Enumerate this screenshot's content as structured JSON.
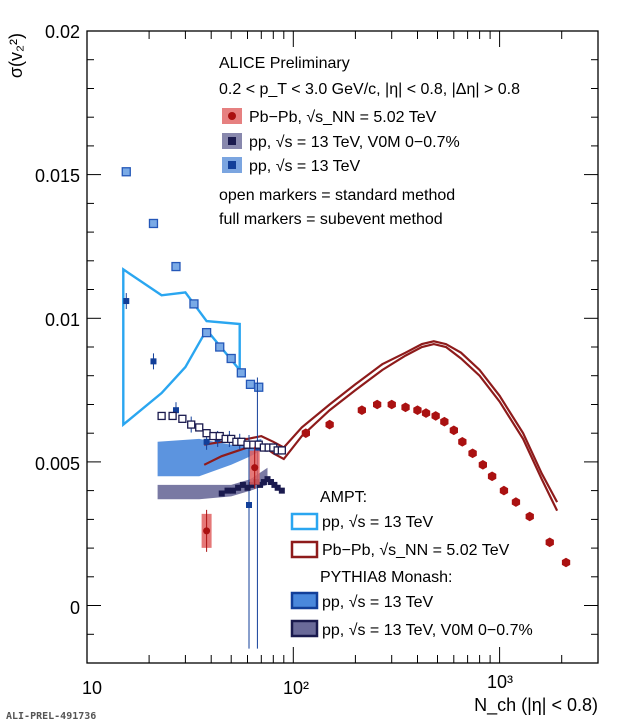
{
  "chart_data": {
    "type": "scatter",
    "ylabel": "σ(v₂²)",
    "xlabel": "N_ch (|η| < 0.8)",
    "xscale": "log",
    "xlim": [
      10,
      3000
    ],
    "ylim": [
      -0.002,
      0.02
    ],
    "x_tick_labels": [
      "10",
      "10²",
      "10³"
    ],
    "y_tick_labels": [
      "0",
      "0.005",
      "0.01",
      "0.015",
      "0.02"
    ],
    "header": [
      "ALICE Preliminary",
      "0.2 < p_T < 3.0 GeV/c, |η| < 0.8, |Δη| > 0.8"
    ],
    "legend_top": [
      "Pb−Pb, √s_NN = 5.02 TeV",
      "pp, √s = 13 TeV, V0M 0−0.7%",
      "pp, √s = 13 TeV",
      "open markers = standard method",
      "full markers = subevent method"
    ],
    "legend_models": {
      "ampt_title": "AMPT:",
      "ampt_pp": "pp, √s = 13 TeV",
      "ampt_pbpb": "Pb−Pb, √s_NN = 5.02 TeV",
      "pythia_title": "PYTHIA8 Monash:",
      "pythia_pp": "pp, √s = 13 TeV",
      "pythia_hm": "pp, √s = 13 TeV, V0M 0−0.7%"
    },
    "footer_label": "ALI-PREL-491736",
    "colors": {
      "pbpb": "#aa1111",
      "pbpb_box": "#e06060",
      "pp_hm": "#1a1a4e",
      "pp_hm_box": "#6a6a99",
      "pp": "#123f99",
      "pp_box": "#5a8fd8",
      "ampt_pp": "#2aa6f0",
      "ampt_pbpb": "#8e1b1b"
    },
    "series": [
      {
        "key": "pp_open",
        "marker": "open-square",
        "color": "#2457b8",
        "fill": "#7aaae6",
        "x": [
          15.5,
          21,
          27,
          33,
          38,
          44,
          50,
          56,
          62,
          68
        ],
        "y": [
          0.0151,
          0.0133,
          0.0118,
          0.0105,
          0.0095,
          0.009,
          0.0086,
          0.0081,
          0.0077,
          0.0076
        ]
      },
      {
        "key": "pp_full",
        "marker": "square",
        "color": "#123f99",
        "x": [
          15.5,
          21,
          27,
          32,
          38,
          43,
          49,
          55,
          61,
          67
        ],
        "y": [
          0.0106,
          0.0085,
          0.0068,
          0.0063,
          0.0057,
          0.0058,
          0.0058,
          0.0057,
          0.0035,
          0.0055
        ]
      },
      {
        "key": "pp_hm_open",
        "marker": "open-square",
        "color": "#1a1a4e",
        "x": [
          23,
          26,
          29,
          32,
          35,
          38,
          41,
          44,
          47,
          50,
          53,
          56,
          60,
          64,
          68,
          72,
          76,
          80,
          84,
          88
        ],
        "y": [
          0.0066,
          0.0066,
          0.0065,
          0.0063,
          0.0062,
          0.006,
          0.0059,
          0.0059,
          0.0058,
          0.0058,
          0.0057,
          0.0057,
          0.0056,
          0.0056,
          0.0056,
          0.0055,
          0.0055,
          0.0055,
          0.0054,
          0.0054
        ]
      },
      {
        "key": "pp_hm_full",
        "marker": "square",
        "color": "#1a1a4e",
        "x": [
          45,
          48,
          51,
          54,
          57,
          60,
          63,
          66,
          69,
          72,
          75,
          78,
          81,
          84,
          88
        ],
        "y": [
          0.0039,
          0.004,
          0.004,
          0.0041,
          0.0042,
          0.0041,
          0.0042,
          0.0043,
          0.0042,
          0.0043,
          0.0044,
          0.0043,
          0.0042,
          0.0041,
          0.004
        ]
      },
      {
        "key": "pbpb",
        "marker": "circle",
        "color": "#aa1111",
        "x": [
          38,
          65,
          115,
          150,
          215,
          255,
          300,
          350,
          400,
          440,
          490,
          540,
          600,
          660,
          740,
          830,
          920,
          1050,
          1200,
          1400,
          1750,
          2100
        ],
        "y": [
          0.0026,
          0.0048,
          0.006,
          0.0063,
          0.0068,
          0.007,
          0.007,
          0.0069,
          0.0068,
          0.0067,
          0.0066,
          0.0064,
          0.0061,
          0.0057,
          0.0053,
          0.0049,
          0.0045,
          0.004,
          0.0036,
          0.0031,
          0.0022,
          0.0015
        ]
      }
    ],
    "bands": [
      {
        "key": "ampt_pp",
        "x": [
          15,
          23,
          30,
          38,
          55
        ],
        "upper": [
          0.0117,
          0.0108,
          0.0109,
          0.0099,
          0.0098
        ],
        "lower": [
          0.0063,
          0.0074,
          0.0083,
          0.0096,
          0.0082
        ]
      },
      {
        "key": "pythia_pp",
        "x": [
          22,
          35,
          50,
          62,
          70
        ],
        "upper": [
          0.0057,
          0.0058,
          0.0056,
          0.0057,
          0.0058
        ],
        "lower": [
          0.0045,
          0.0045,
          0.0049,
          0.0052,
          0.0054
        ]
      },
      {
        "key": "pythia_hm",
        "x": [
          22,
          35,
          50,
          62,
          75
        ],
        "upper": [
          0.0042,
          0.0042,
          0.0042,
          0.0044,
          0.0048
        ],
        "lower": [
          0.0037,
          0.0037,
          0.0038,
          0.004,
          0.0042
        ]
      }
    ],
    "ampt_pbpb": {
      "x": [
        37,
        45,
        60,
        70,
        80,
        90,
        110,
        150,
        200,
        270,
        350,
        420,
        480,
        550,
        650,
        800,
        1000,
        1300,
        1600,
        1900
      ],
      "upper": [
        0.0056,
        0.0057,
        0.0058,
        0.0059,
        0.0057,
        0.0055,
        0.0062,
        0.007,
        0.0077,
        0.0084,
        0.0088,
        0.0091,
        0.0092,
        0.0091,
        0.0088,
        0.0082,
        0.0073,
        0.006,
        0.0046,
        0.0036
      ],
      "lower": [
        0.0049,
        0.0052,
        0.0055,
        0.0056,
        0.0053,
        0.0051,
        0.0059,
        0.0068,
        0.0075,
        0.0082,
        0.0087,
        0.009,
        0.0091,
        0.009,
        0.0086,
        0.008,
        0.0071,
        0.0058,
        0.0044,
        0.0033
      ]
    }
  }
}
